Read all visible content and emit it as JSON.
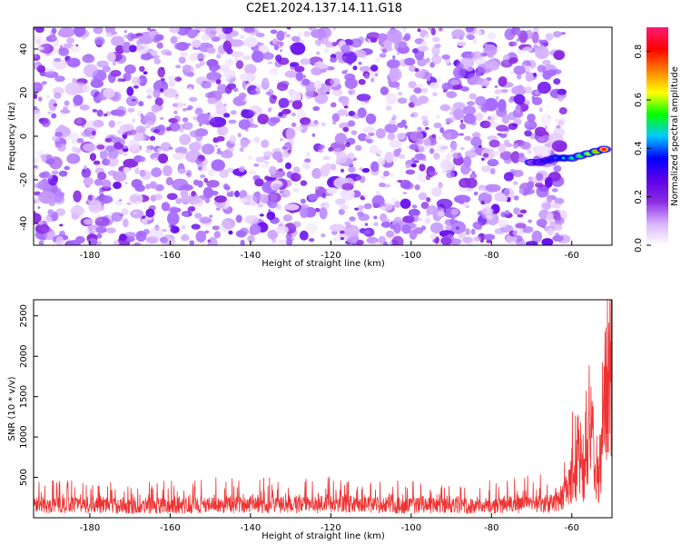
{
  "title": "C2E1.2024.137.14.11.G18",
  "chart_data": [
    {
      "type": "heatmap",
      "xlabel": "Height of straight line (km)",
      "ylabel": "Frequency (Hz)",
      "xlim": [
        -194,
        -50
      ],
      "ylim": [
        -50,
        50
      ],
      "xticks": [
        -180,
        -160,
        -140,
        -120,
        -100,
        -80,
        -60
      ],
      "yticks": [
        -40,
        -20,
        0,
        20,
        40
      ],
      "colorbar": {
        "label": "Normalized spectral amplitude",
        "range": [
          0,
          0.9
        ],
        "ticks": [
          0.0,
          0.2,
          0.4,
          0.6,
          0.8
        ],
        "colormap": [
          "#ffffff",
          "#d9b3ff",
          "#8a2be2",
          "#5b00e8",
          "#0000ff",
          "#00c8ff",
          "#00ff00",
          "#ffff00",
          "#ff8000",
          "#ff0000",
          "#ff1a75"
        ]
      },
      "noise_region": {
        "x_range": [
          -194,
          -62
        ],
        "y_range": [
          -50,
          50
        ],
        "typical_amplitude": [
          0.0,
          0.12
        ]
      },
      "signal_track": {
        "x": [
          -70,
          -68,
          -66,
          -64,
          -62,
          -60,
          -58,
          -56,
          -54,
          -52
        ],
        "frequency": [
          -12,
          -12,
          -11,
          -10,
          -10,
          -10,
          -9,
          -8,
          -7,
          -6
        ],
        "amplitude": [
          0.2,
          0.28,
          0.35,
          0.4,
          0.45,
          0.5,
          0.55,
          0.6,
          0.7,
          0.85
        ]
      }
    },
    {
      "type": "line",
      "xlabel": "Height of straight line (km)",
      "ylabel": "SNR (10 * v/v)",
      "xlim": [
        -194,
        -50
      ],
      "ylim": [
        0,
        2700
      ],
      "xticks": [
        -180,
        -160,
        -140,
        -120,
        -100,
        -80,
        -60
      ],
      "yticks": [
        500,
        1000,
        1500,
        2000,
        2500
      ],
      "color": "#ee3333",
      "series_envelope": {
        "x": [
          -194,
          -180,
          -160,
          -140,
          -120,
          -100,
          -80,
          -66,
          -64,
          -62,
          -60,
          -58,
          -57,
          -56,
          -55,
          -54,
          -53,
          -52,
          -51
        ],
        "baseline": [
          200,
          200,
          200,
          210,
          220,
          200,
          200,
          220,
          260,
          350,
          700,
          900,
          600,
          1100,
          1400,
          400,
          900,
          1800,
          2600
        ],
        "peak": [
          500,
          450,
          480,
          520,
          510,
          460,
          470,
          560,
          650,
          750,
          1400,
          1300,
          1100,
          2000,
          1800,
          1200,
          1700,
          2600,
          2700
        ]
      }
    }
  ]
}
